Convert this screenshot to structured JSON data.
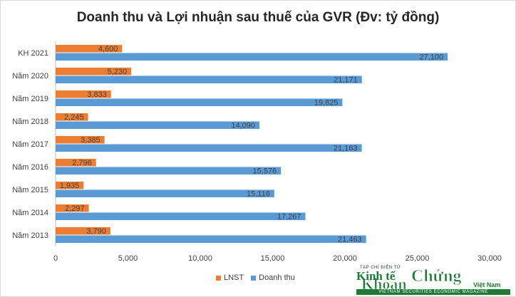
{
  "chart_data": {
    "type": "bar",
    "orientation": "horizontal",
    "title": "Doanh thu và Lợi nhuận sau thuế của GVR (Đv: tỷ đồng)",
    "categories": [
      "KH 2021",
      "Năm 2020",
      "Năm 2019",
      "Năm 2018",
      "Năm 2017",
      "Năm 2016",
      "Năm 2015",
      "Năm 2014",
      "Năm 2013"
    ],
    "series": [
      {
        "name": "LNST",
        "color": "#ed7d31",
        "values": [
          4600,
          5230,
          3833,
          2245,
          3385,
          2796,
          1935,
          2297,
          3790
        ],
        "labels": [
          "4,600",
          "5,230",
          "3,833",
          "2,245",
          "3,385",
          "2,796",
          "1,935",
          "2,297",
          "3,790"
        ]
      },
      {
        "name": "Doanh thu",
        "color": "#5b9bd5",
        "values": [
          27100,
          21171,
          19825,
          14090,
          21163,
          15576,
          15116,
          17267,
          21463
        ],
        "labels": [
          "27,100",
          "21,171",
          "19,825",
          "14,090",
          "21,163",
          "15,576",
          "15,116",
          "17,267",
          "21,463"
        ]
      }
    ],
    "xlim": [
      0,
      30000
    ],
    "xticks": [
      0,
      5000,
      10000,
      15000,
      20000,
      25000,
      30000
    ],
    "xtick_labels": [
      "0",
      "5,000",
      "10,000",
      "15,000",
      "20,000",
      "25,000",
      "30,000"
    ],
    "grid": false,
    "legend": "bottom"
  },
  "logo": {
    "small_text": "TẠP CHÍ ĐIỆN TỬ",
    "kinh_te": "Kinh tế",
    "chung": "Chứng",
    "khoan": "Khoán",
    "viet_nam": "Việt Nam",
    "bar_text": "VIETNAM SECURITIES ECONOMIC MAGAZINE"
  }
}
